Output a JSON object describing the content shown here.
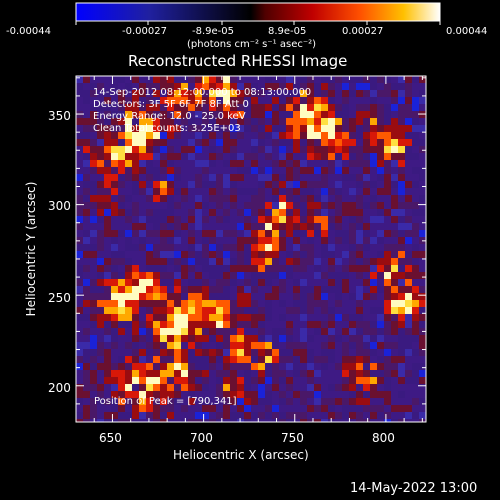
{
  "colorbar": {
    "tick_labels": [
      "-0.00044",
      "-0.00027",
      "-8.9e-05",
      "8.9e-05",
      "0.00027",
      "0.00044"
    ],
    "unit_label": "(photons cm⁻² s⁻¹ asec⁻²)",
    "range": [
      -0.00044,
      0.00044
    ],
    "colors": [
      "#0000ff",
      "#2020a0",
      "#000000",
      "#800000",
      "#ff2000",
      "#ff9000",
      "#ffff40",
      "#ffffff"
    ]
  },
  "plot": {
    "title": "Reconstructed RHESSI Image",
    "xlabel": "Heliocentric X (arcsec)",
    "ylabel": "Heliocentric Y (arcsec)",
    "x_tick_labels": [
      "650",
      "700",
      "750",
      "800"
    ],
    "y_tick_labels": [
      "200",
      "250",
      "300",
      "350"
    ],
    "xlim": [
      630,
      822
    ],
    "ylim": [
      180,
      371
    ],
    "info_lines": [
      "14-Sep-2012 08:12:00.000 to 08:13:00.000",
      "Detectors: 3F 5F 6F 7F 8F  Att 0",
      "Energy Range: 12.0 - 25.0 keV",
      "Clean    Total counts: 3.25E+03"
    ],
    "peak_label": "Position of Peak = [790,341]",
    "background_color": "#3a1a80"
  },
  "footer": {
    "timestamp": "14-May-2022 13:00"
  }
}
